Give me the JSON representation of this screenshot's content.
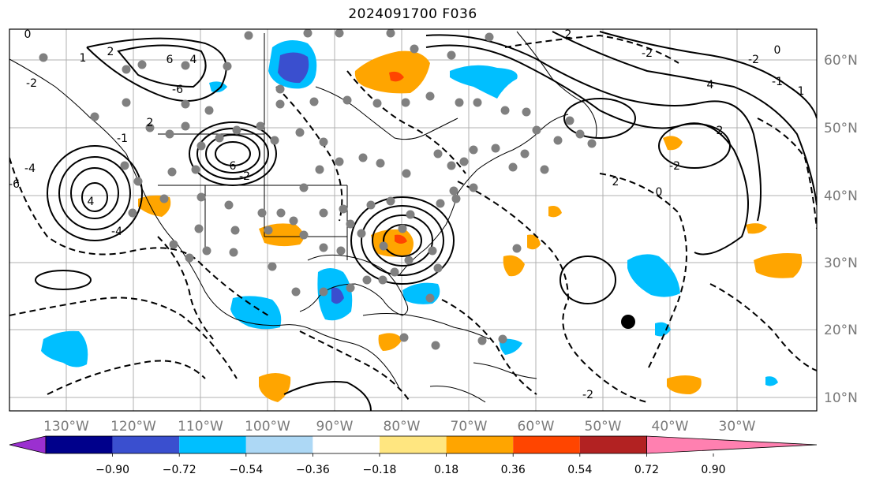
{
  "title": "2024091700 F036",
  "lon_labels": [
    "130°W",
    "120°W",
    "110°W",
    "100°W",
    "90°W",
    "80°W",
    "70°W",
    "60°W",
    "50°W",
    "40°W",
    "30°W"
  ],
  "lat_labels": [
    "60°N",
    "50°N",
    "40°N",
    "30°N",
    "20°N",
    "10°N"
  ],
  "colorbar": {
    "ticks": [
      "−0.90",
      "−0.72",
      "−0.54",
      "−0.36",
      "−0.18",
      "0.18",
      "0.36",
      "0.54",
      "0.72",
      "0.90"
    ],
    "colors": [
      "#9b30d0",
      "#00008b",
      "#3a4fcf",
      "#00bfff",
      "#add8f5",
      "#ffffff",
      "#ffe680",
      "#ffa500",
      "#ff4500",
      "#b22222",
      "#ff80b0"
    ]
  },
  "contour_labels": [
    "0",
    "2",
    "4",
    "6",
    "-2",
    "-4",
    "-6",
    "1",
    "-1",
    "0",
    "-2",
    "2",
    "4",
    "-4",
    "6",
    "-6",
    "2",
    "-2",
    "4",
    "0",
    "-2",
    "2",
    "-1",
    "1",
    "-2",
    "2",
    "0",
    "-2"
  ],
  "colors": {
    "grid": "#b0b0b0",
    "coast": "#000000",
    "dots": "#808080"
  }
}
